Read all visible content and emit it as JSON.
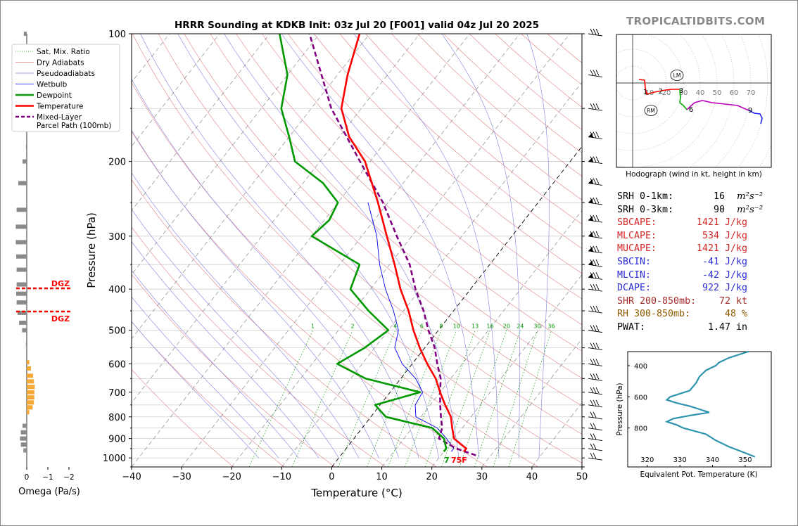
{
  "title": "HRRR Sounding at KDKB Init: 03z Jul 20 [F001] valid 04z Jul 20 2025",
  "watermark": "TROPICALTIDBITS.COM",
  "skewt": {
    "xlabel": "Temperature (°C)",
    "ylabel": "Pressure (hPa)",
    "xticks": [
      -40,
      -30,
      -20,
      -10,
      0,
      10,
      20,
      30,
      40,
      50
    ],
    "xtick_labels": [
      "−40",
      "−30",
      "−20",
      "−10",
      "0",
      "10",
      "20",
      "30",
      "40",
      "50"
    ],
    "yticks": [
      100,
      200,
      300,
      400,
      500,
      600,
      700,
      800,
      900,
      1000
    ],
    "xlim": [
      -40,
      50
    ],
    "ylim": [
      1050,
      100
    ],
    "mixing_ratio_labels": [
      "1",
      "2",
      "4",
      "6",
      "8",
      "10",
      "13",
      "16",
      "20",
      "24",
      "30",
      "36"
    ],
    "surface_td_label": "7",
    "surface_t_label": "75F",
    "colors": {
      "temperature": "#ff0000",
      "dewpoint": "#009900",
      "wetbulb": "#0000ee",
      "parcel": "#800080",
      "dry_adiabat": "#e08080",
      "moist_adiabat": "#8080e0",
      "mixing_ratio": "#009900",
      "isotherm": "#555555"
    }
  },
  "legend": {
    "items": [
      {
        "label": "Sat. Mix. Ratio",
        "color": "#009900",
        "style": "dotted"
      },
      {
        "label": "Dry Adiabats",
        "color": "#e08080",
        "style": "solid"
      },
      {
        "label": "Pseudoadiabats",
        "color": "#8080e0",
        "style": "solid"
      },
      {
        "label": "Wetbulb",
        "color": "#0000ee",
        "style": "solid"
      },
      {
        "label": "Dewpoint",
        "color": "#009900",
        "style": "thick"
      },
      {
        "label": "Temperature",
        "color": "#ff0000",
        "style": "thick"
      },
      {
        "label": "Mixed-Layer",
        "label2": "Parcel Path (100mb)",
        "color": "#800080",
        "style": "dashed"
      }
    ]
  },
  "omega": {
    "xlabel": "Omega (Pa/s)",
    "xtick_labels": [
      "0",
      "−1",
      "−2"
    ],
    "dgz_label": "DGZ"
  },
  "hodograph": {
    "caption": "Hodograph (wind in kt, height in km)",
    "ring_labels": [
      "10",
      "20",
      "30",
      "40",
      "50",
      "60",
      "70"
    ],
    "height_labels": [
      "1",
      "2",
      "3",
      "6",
      "9"
    ],
    "markers": [
      "LM",
      "RM"
    ]
  },
  "indices": [
    {
      "label": "SRH 0-1km:",
      "value": "16",
      "unit": "m²s⁻²",
      "color": "#000000"
    },
    {
      "label": "SRH 0-3km:",
      "value": "90",
      "unit": "m²s⁻²",
      "color": "#000000"
    },
    {
      "label": "SBCAPE:",
      "value": "1421 J/kg",
      "unit": "",
      "color": "#d62728"
    },
    {
      "label": "MLCAPE:",
      "value": "534 J/kg",
      "unit": "",
      "color": "#d62728"
    },
    {
      "label": "MUCAPE:",
      "value": "1421 J/kg",
      "unit": "",
      "color": "#d62728"
    },
    {
      "label": "SBCIN:",
      "value": "-41 J/kg",
      "unit": "",
      "color": "#2b2bd6"
    },
    {
      "label": "MLCIN:",
      "value": "-42 J/kg",
      "unit": "",
      "color": "#2b2bd6"
    },
    {
      "label": "DCAPE:",
      "value": "922 J/kg",
      "unit": "",
      "color": "#2b2bd6"
    },
    {
      "label": "SHR 200-850mb:",
      "value": "72 kt",
      "unit": "",
      "color": "#a52a2a"
    },
    {
      "label": "RH 300-850mb:",
      "value": "48 %",
      "unit": "",
      "color": "#8b5a00"
    },
    {
      "label": "PWAT:",
      "value": "1.47 in",
      "unit": "",
      "color": "#000000"
    }
  ],
  "theta_e": {
    "xlabel": "Equivalent Pot. Temperature (K)",
    "ylabel": "Pressure (hPa)",
    "xtick_labels": [
      "320",
      "330",
      "340",
      "350"
    ],
    "ytick_labels": [
      "400",
      "600",
      "800"
    ],
    "color": "#2e93ad"
  },
  "chart_data": {
    "type": "line",
    "title": "HRRR Sounding at KDKB Init: 03z Jul 20 [F001] valid 04z Jul 20 2025",
    "xlabel": "Temperature (°C)",
    "ylabel": "Pressure (hPa)",
    "xlim": [
      -40,
      50
    ],
    "ylim": [
      1050,
      100
    ],
    "log_y": true,
    "series": [
      {
        "name": "Temperature",
        "p": [
          966,
          950,
          925,
          900,
          850,
          800,
          750,
          700,
          650,
          600,
          550,
          500,
          450,
          400,
          350,
          300,
          250,
          200,
          175,
          150,
          125,
          100
        ],
        "t": [
          24,
          24,
          22,
          20,
          18,
          16,
          13,
          10,
          7,
          3,
          -1,
          -5,
          -9,
          -14,
          -19,
          -25,
          -32,
          -41,
          -48,
          -54,
          -58,
          -62
        ]
      },
      {
        "name": "Dewpoint",
        "p": [
          966,
          950,
          925,
          900,
          850,
          800,
          750,
          700,
          650,
          600,
          550,
          500,
          450,
          400,
          350,
          300,
          275,
          250,
          225,
          200,
          175,
          150,
          125,
          100
        ],
        "t": [
          20,
          20,
          19,
          18,
          14,
          3,
          -1,
          6,
          -7,
          -15,
          -12,
          -10,
          -17,
          -24,
          -26,
          -40,
          -39,
          -40,
          -46,
          -55,
          -60,
          -66,
          -70,
          -78
        ]
      },
      {
        "name": "Wetbulb",
        "p": [
          966,
          950,
          925,
          900,
          850,
          800,
          750,
          700,
          650,
          600,
          550,
          500,
          450,
          400,
          350,
          300,
          250
        ],
        "t": [
          21.5,
          21.5,
          20,
          18.5,
          15,
          9,
          7,
          6.5,
          3,
          -2,
          -6,
          -8,
          -12,
          -17,
          -22,
          -27,
          -34
        ]
      },
      {
        "name": "Mixed-Layer Parcel Path (100mb)",
        "p": [
          986,
          950,
          900,
          850,
          800,
          750,
          700,
          650,
          600,
          550,
          500,
          450,
          400,
          350,
          300,
          250,
          200,
          150,
          100
        ],
        "t": [
          27,
          22,
          17,
          16,
          14,
          12,
          10,
          8,
          5,
          2,
          -2,
          -6,
          -11,
          -16,
          -23,
          -31,
          -42,
          -56,
          -72
        ]
      }
    ],
    "indices": {
      "SRH 0-1km": 16,
      "SRH 0-3km": 90,
      "SBCAPE": 1421,
      "MLCAPE": 534,
      "MUCAPE": 1421,
      "SBCIN": -41,
      "MLCIN": -42,
      "DCAPE": 922,
      "SHR 200-850mb": 72,
      "RH 300-850mb": 48,
      "PWAT": 1.47
    }
  }
}
